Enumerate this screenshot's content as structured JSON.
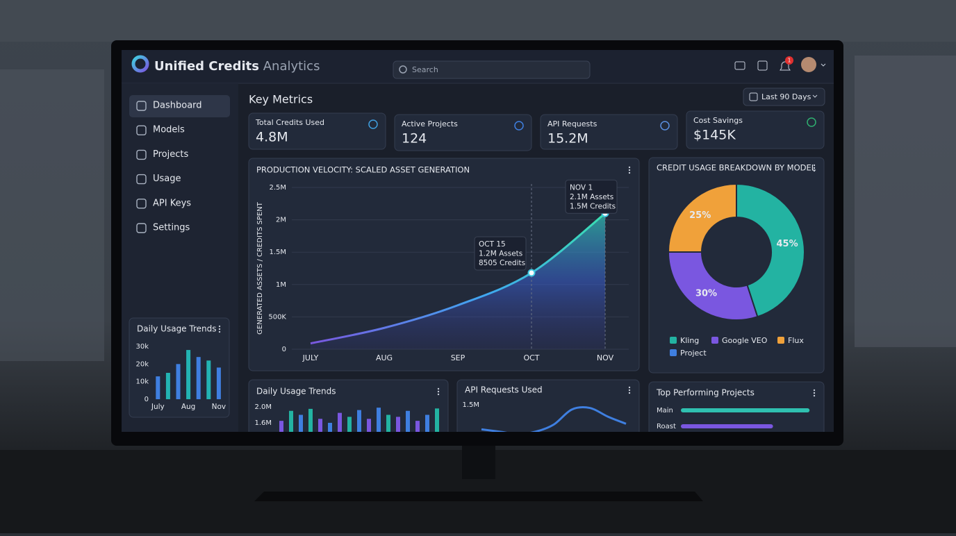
{
  "header": {
    "brand": "Unified Credits",
    "brand_suffix": "Analytics",
    "search": "Search",
    "notifications": "1"
  },
  "sidebar": {
    "items": [
      "Dashboard",
      "Models",
      "Projects",
      "Usage",
      "API Keys",
      "Settings"
    ]
  },
  "section_title": "Key Metrics",
  "range_filter": "Last 90 Days",
  "metrics": [
    {
      "label": "Total Credits Used",
      "value": "4.8M"
    },
    {
      "label": "Active Projects",
      "value": "124"
    },
    {
      "label": "API Requests",
      "value": "15.2M"
    },
    {
      "label": "Cost Savings",
      "value": "$145K"
    }
  ],
  "chart_data": [
    {
      "type": "line",
      "title": "PRODUCTION VELOCITY: SCALED ASSET GENERATION",
      "y_label": "GENERATED ASSETS / CREDITS SPENT",
      "categories": [
        "JULY",
        "AUG",
        "SEP",
        "OCT",
        "NOV"
      ],
      "values": [
        90000,
        330000,
        680000,
        1180000,
        2100000
      ],
      "color": "#3fc8e0",
      "ylim": [
        0,
        2500000
      ],
      "yticks": [
        0,
        {
          "value": 500000,
          "label": "500K"
        },
        {
          "value": 1000000,
          "label": "1M"
        },
        {
          "value": 1500000,
          "label": "1.5M"
        },
        {
          "value": 2000000,
          "label": "2M"
        },
        {
          "value": 2500000,
          "label": "2.5M"
        }
      ],
      "grid": true,
      "annotations": [
        [
          "OCT 15",
          "1.2M Assets",
          "8505 Credits"
        ],
        [
          "NOV 1",
          "2.1M Assets",
          "1.5M Credits"
        ]
      ]
    },
    {
      "type": "pie",
      "title": "CREDIT USAGE BREAKDOWN BY MODEL",
      "categories": [
        "Kling",
        "Google VEO",
        "Flux",
        "Project"
      ],
      "values": [
        45,
        30,
        25,
        null
      ],
      "value_labels": [
        "45%",
        "30%",
        "25%",
        null
      ],
      "colors": [
        "#23b3a2",
        "#7a57e0",
        "#f0a13a",
        "#3f7fe0"
      ]
    },
    {
      "type": "bar",
      "title": "Daily Usage Trends",
      "categories": [
        "July",
        null,
        null,
        "Aug",
        null,
        null,
        "Nov"
      ],
      "values": [
        13000,
        15000,
        20000,
        28000,
        24000,
        22000,
        18000
      ],
      "colors": [
        "#3f7fe0",
        "#23b3b3",
        "#3f7fe0",
        "#23b3b3",
        "#3f7fe0",
        "#23b3b3",
        "#3f7fe0"
      ],
      "ylim": [
        0,
        30000
      ],
      "yticks": [
        0,
        {
          "value": 10000,
          "label": "10k"
        },
        {
          "value": 20000,
          "label": "20k"
        },
        {
          "value": 30000,
          "label": "30k"
        }
      ]
    },
    {
      "type": "bar",
      "title": "Daily Usage Trends",
      "categories": [
        null,
        null,
        null,
        null,
        null,
        null,
        null,
        null,
        null,
        null,
        null,
        null,
        null,
        null,
        null,
        null,
        null
      ],
      "values": [
        1650000,
        1900000,
        1800000,
        1950000,
        1700000,
        1600000,
        1850000,
        1750000,
        1920000,
        1700000,
        1980000,
        1800000,
        1750000,
        1900000,
        1650000,
        1800000,
        1960000
      ],
      "colors": [
        "#7a57e0",
        "#23b3a2",
        "#3f7fe0",
        "#23b3a2",
        "#7a57e0",
        "#3f7fe0",
        "#7a57e0",
        "#23b3a2",
        "#3f7fe0",
        "#7a57e0",
        "#3f7fe0",
        "#23b3a2",
        "#7a57e0",
        "#3f7fe0",
        "#7a57e0",
        "#3f7fe0",
        "#23b3a2"
      ],
      "ylim": [
        1200000,
        2000000
      ],
      "yticks": [
        {
          "value": 1600000,
          "label": "1.6M"
        },
        {
          "value": 2000000,
          "label": "2.0M"
        }
      ]
    },
    {
      "type": "line",
      "title": "API Requests Used",
      "categories": [
        null,
        null,
        null,
        null,
        null,
        null,
        null,
        null,
        null
      ],
      "values": [
        1190000,
        1160000,
        1130000,
        1160000,
        1250000,
        1440000,
        1460000,
        1350000,
        1260000
      ],
      "color": "#3f7fe0",
      "ylim": [
        1000000,
        1500000
      ],
      "yticks": [
        {
          "value": 1500000,
          "label": "1.5M"
        }
      ],
      "grid": false
    },
    {
      "type": "hbar",
      "title": "Top Performing Projects",
      "categories": [
        "Main",
        "Roast"
      ],
      "values": [
        0.95,
        0.68
      ],
      "colors": [
        "#2fc0b0",
        "#7a57e0"
      ],
      "xlim": [
        0,
        1
      ]
    }
  ]
}
